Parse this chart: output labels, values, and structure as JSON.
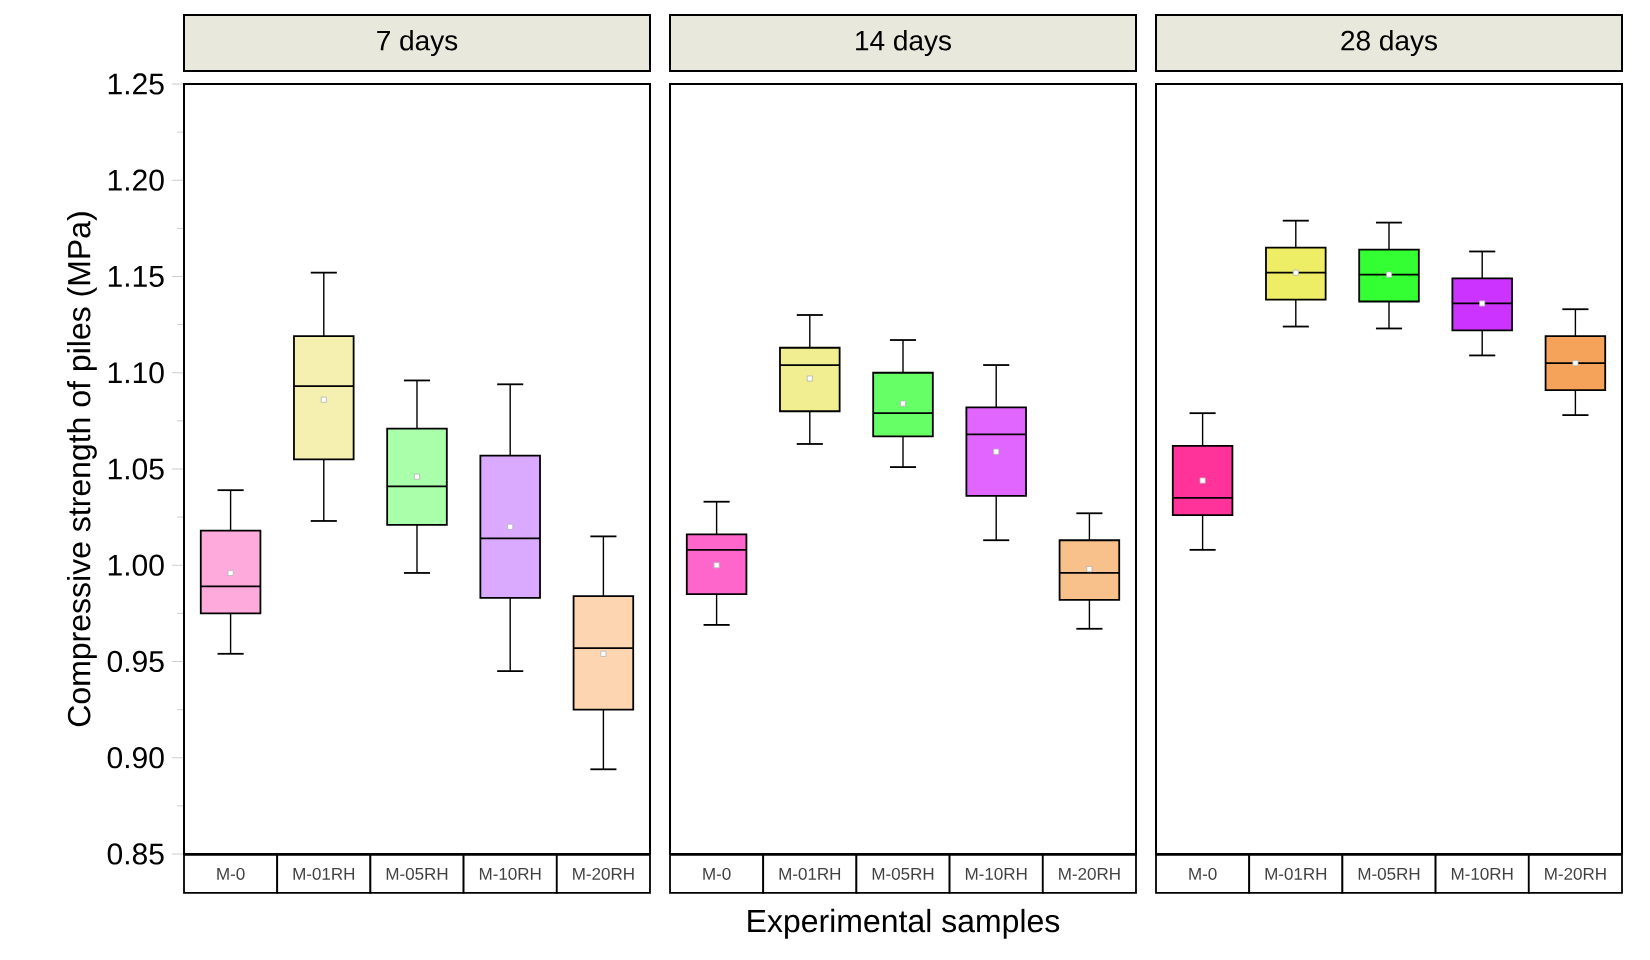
{
  "chart_data": [
    {
      "type": "box",
      "title": "7 days",
      "ylabel": "Compressive strength of piles (MPa)",
      "categories": [
        "M-0",
        "M-01RH",
        "M-05RH",
        "M-10RH",
        "M-20RH"
      ],
      "colors": [
        "#ffaadd",
        "#f5f0b0",
        "#aaffaa",
        "#d9aaff",
        "#fdd5b0"
      ],
      "ylim": [
        0.85,
        1.25
      ],
      "yticks": [
        0.85,
        {
          "value": 0.9,
          "label": "0.90"
        },
        0.95,
        {
          "value": 1.0,
          "label": "1.00"
        },
        1.05,
        {
          "value": 1.1,
          "label": "1.10"
        },
        1.15,
        {
          "value": 1.2,
          "label": "1.20"
        },
        1.25
      ],
      "boxes": [
        {
          "low": 0.954,
          "q1": 0.975,
          "median": 0.989,
          "q3": 1.018,
          "high": 1.039,
          "mean": 0.996
        },
        {
          "low": 1.023,
          "q1": 1.055,
          "median": 1.093,
          "q3": 1.119,
          "high": 1.152,
          "mean": 1.086
        },
        {
          "low": 0.996,
          "q1": 1.021,
          "median": 1.041,
          "q3": 1.071,
          "high": 1.096,
          "mean": 1.046
        },
        {
          "low": 0.945,
          "q1": 0.983,
          "median": 1.014,
          "q3": 1.057,
          "high": 1.094,
          "mean": 1.02
        },
        {
          "low": 0.894,
          "q1": 0.925,
          "median": 0.957,
          "q3": 0.984,
          "high": 1.015,
          "mean": 0.954
        }
      ]
    },
    {
      "type": "box",
      "title": "14 days",
      "xlabel": "Experimental samples",
      "categories": [
        "M-0",
        "M-01RH",
        "M-05RH",
        "M-10RH",
        "M-20RH"
      ],
      "colors": [
        "#ff66cc",
        "#f0ee90",
        "#66ff66",
        "#e066ff",
        "#f8c08a"
      ],
      "ylim": [
        0.85,
        1.25
      ],
      "tick_labels": "x",
      "boxes": [
        {
          "low": 0.969,
          "q1": 0.985,
          "median": 1.008,
          "q3": 1.016,
          "high": 1.033,
          "mean": 1.0
        },
        {
          "low": 1.063,
          "q1": 1.08,
          "median": 1.104,
          "q3": 1.113,
          "high": 1.13,
          "mean": 1.097
        },
        {
          "low": 1.051,
          "q1": 1.067,
          "median": 1.079,
          "q3": 1.1,
          "high": 1.117,
          "mean": 1.084
        },
        {
          "low": 1.013,
          "q1": 1.036,
          "median": 1.068,
          "q3": 1.082,
          "high": 1.104,
          "mean": 1.059
        },
        {
          "low": 0.967,
          "q1": 0.982,
          "median": 0.996,
          "q3": 1.013,
          "high": 1.027,
          "mean": 0.998
        }
      ]
    },
    {
      "type": "box",
      "title": "28 days",
      "categories": [
        "M-0",
        "M-01RH",
        "M-05RH",
        "M-10RH",
        "M-20RH"
      ],
      "colors": [
        "#ff3399",
        "#eeee66",
        "#33ff33",
        "#cc33ff",
        "#f5a25a"
      ],
      "ylim": [
        0.85,
        1.25
      ],
      "tick_labels": "x",
      "boxes": [
        {
          "low": 1.008,
          "q1": 1.026,
          "median": 1.035,
          "q3": 1.062,
          "high": 1.079,
          "mean": 1.044
        },
        {
          "low": 1.124,
          "q1": 1.138,
          "median": 1.152,
          "q3": 1.165,
          "high": 1.179,
          "mean": 1.152
        },
        {
          "low": 1.123,
          "q1": 1.137,
          "median": 1.151,
          "q3": 1.164,
          "high": 1.178,
          "mean": 1.151
        },
        {
          "low": 1.109,
          "q1": 1.122,
          "median": 1.136,
          "q3": 1.149,
          "high": 1.163,
          "mean": 1.136
        },
        {
          "low": 1.078,
          "q1": 1.091,
          "median": 1.105,
          "q3": 1.119,
          "high": 1.133,
          "mean": 1.105
        }
      ]
    }
  ]
}
